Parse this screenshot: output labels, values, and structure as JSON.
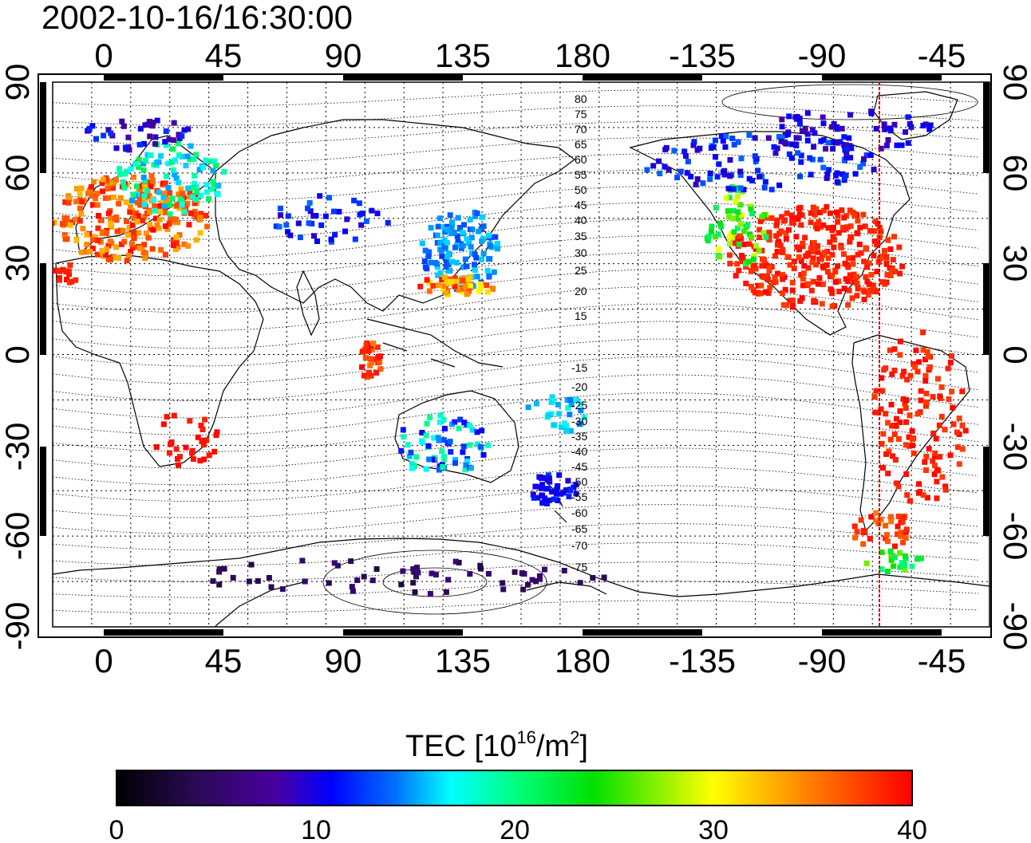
{
  "timestamp": "2002-10-16/16:30:00",
  "longitude_ticks": [
    "0",
    "45",
    "90",
    "135",
    "180",
    "-135",
    "-90",
    "-45"
  ],
  "latitude_ticks": [
    "90",
    "60",
    "30",
    "0",
    "-30",
    "-60",
    "-90"
  ],
  "contour_labels_north": [
    "80",
    "75",
    "70",
    "65",
    "60",
    "55",
    "50",
    "45",
    "40",
    "35",
    "30",
    "25",
    "20",
    "15"
  ],
  "contour_labels_south": [
    "-15",
    "-20",
    "-25",
    "-30",
    "-35",
    "-40",
    "-45",
    "-50",
    "-55",
    "-60",
    "-65",
    "-70",
    "-75"
  ],
  "colorbar": {
    "title_main": "TEC  [10",
    "title_sup1": "16",
    "title_mid": "/m",
    "title_sup2": "2",
    "title_end": "]",
    "tick_labels": [
      "0",
      "10",
      "20",
      "30",
      "40"
    ],
    "min": 0,
    "max": 40,
    "stops": [
      "#000000",
      "#2a0a55",
      "#4a00a0",
      "#0000ff",
      "#0070ff",
      "#00ffff",
      "#00ff80",
      "#00e000",
      "#ffff00",
      "#ff8000",
      "#ff0000"
    ]
  },
  "highlight_color": "#cc0000",
  "tec_regions": [
    {
      "region": "europe",
      "tec": 38
    },
    {
      "region": "north-america",
      "tec": 40
    },
    {
      "region": "south-america",
      "tec": 40
    },
    {
      "region": "east-asia",
      "tec": 18
    },
    {
      "region": "australia",
      "tec": 22
    },
    {
      "region": "antarctica",
      "tec": 4
    }
  ]
}
